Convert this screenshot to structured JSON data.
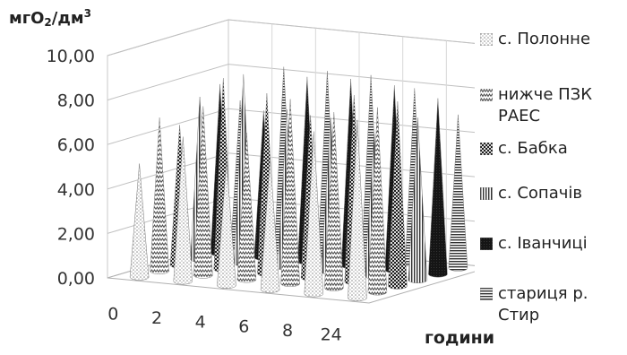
{
  "chart_data": {
    "type": "bar",
    "subtype": "3d-cone",
    "title": "",
    "ylabel": "мгО₂/дм³",
    "ylabel_parts": {
      "base": "мгО",
      "sub": "2",
      "mid": "/дм",
      "sup": "3"
    },
    "xlabel": "години",
    "ylim": [
      0,
      10
    ],
    "yticks": [
      "0,00",
      "2,00",
      "4,00",
      "6,00",
      "8,00",
      "10,00"
    ],
    "ytick_values": [
      0,
      2,
      4,
      6,
      8,
      10
    ],
    "categories": [
      "0",
      "2",
      "4",
      "6",
      "8",
      "24"
    ],
    "grid": true,
    "legend_position": "right",
    "series": [
      {
        "name": "с. Полонне",
        "pattern": "dots-light",
        "values": [
          5.1,
          6.5,
          5.6,
          5.9,
          7.3,
          8.0
        ]
      },
      {
        "name": "нижче ПЗК РАЕС",
        "pattern": "zigzag",
        "values": [
          6.9,
          7.6,
          6.6,
          8.3,
          7.9,
          8.3
        ]
      },
      {
        "name": "с. Бабка",
        "pattern": "checker",
        "values": [
          6.3,
          8.6,
          8.1,
          7.3,
          8.4,
          8.3
        ]
      },
      {
        "name": "с. Сопачів",
        "pattern": "v-stripes",
        "values": [
          7.3,
          8.5,
          7.1,
          6.9,
          6.4,
          7.3
        ]
      },
      {
        "name": "с. Іванчиці",
        "pattern": "solid-dark",
        "values": [
          7.6,
          6.6,
          8.3,
          8.4,
          8.3,
          7.9
        ]
      },
      {
        "name": "стариця р. Стир",
        "pattern": "h-stripes",
        "values": [
          6.6,
          8.3,
          8.3,
          8.3,
          7.9,
          6.9
        ]
      }
    ]
  }
}
